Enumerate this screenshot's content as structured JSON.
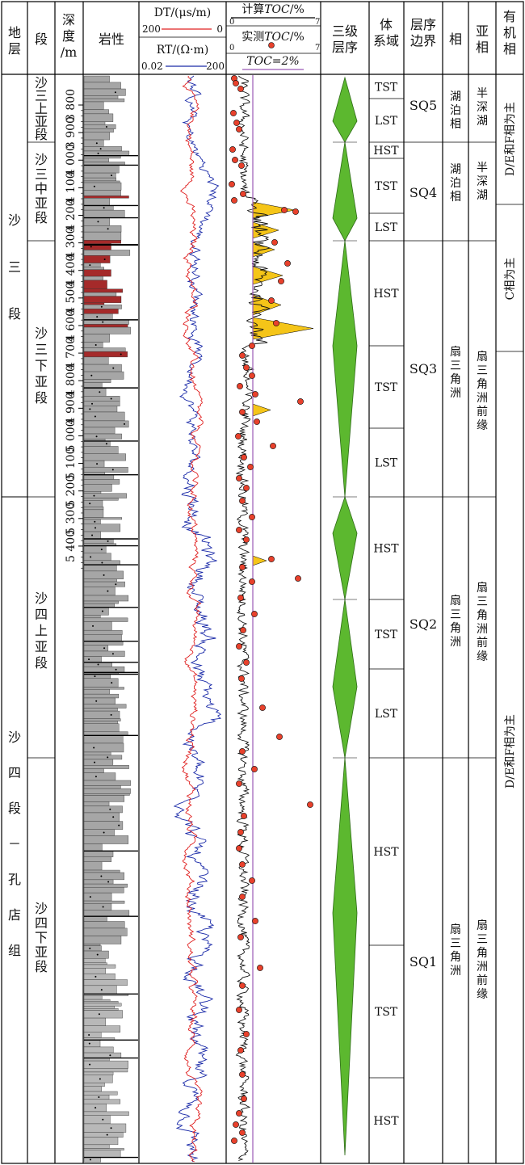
{
  "headers": {
    "strata": "地层",
    "member": "段",
    "depth": "深度/m",
    "lithology": "岩性",
    "dt": "DT/(μs/m)",
    "dt_left": "200",
    "dt_right": "0",
    "rt": "RT/(Ω·m)",
    "rt_left": "0.02",
    "rt_right": "200",
    "toc_calc": "计算TOC/%",
    "toc_calc_left": "0",
    "toc_calc_right": "7",
    "toc_meas": "实测TOC/%",
    "toc_meas_left": "0",
    "toc_meas_right": "7",
    "toc_ref": "TOC=2%",
    "third_order": "三级层序",
    "systems_tract": "体系域",
    "sequence_boundary": "层序边界",
    "facies": "相",
    "subfacies": "亚相",
    "organic_facies": "有机相"
  },
  "strata": [
    {
      "label": "沙三段"
    },
    {
      "label": "沙四段－孔店组"
    }
  ],
  "members": [
    {
      "label": "沙三上亚段"
    },
    {
      "label": "沙三中亚段"
    },
    {
      "label": "沙三下亚段"
    },
    {
      "label": "沙四上亚段"
    },
    {
      "label": "沙四下亚段"
    }
  ],
  "depth_ticks": [
    "3 800",
    "3 900",
    "4 000",
    "4 100",
    "4 200",
    "4 300",
    "4 400",
    "4 500",
    "4 600",
    "4 700",
    "4 800",
    "4 900",
    "5 000",
    "5 100",
    "5 200",
    "5 300",
    "5 400"
  ],
  "systems_tracts": [
    "TST",
    "LST",
    "HST",
    "TST",
    "LST",
    "HST",
    "TST",
    "LST",
    "HST",
    "TST",
    "LST",
    "HST",
    "TST",
    "HST"
  ],
  "sequences": [
    "SQ5",
    "SQ4",
    "SQ3",
    "SQ2",
    "SQ1"
  ],
  "facies": [
    "湖泊相",
    "湖泊相",
    "扇三角洲",
    "扇三角洲",
    "扇三角洲"
  ],
  "subfacies": [
    "半深湖",
    "半深湖",
    "扇三角洲前缘",
    "扇三角洲前缘",
    "扇三角洲前缘"
  ],
  "organic_facies": [
    "D/E和F相为主",
    "C相为主",
    "D/E和F相为主"
  ],
  "colors": {
    "dt_curve": "#e02020",
    "rt_curve": "#1a2aa8",
    "toc_curve": "#111111",
    "toc_fill": "#f5c518",
    "toc_point": "#e8412c",
    "toc_ref_line": "#9b59b6",
    "sequence_green": "#5cb82f",
    "lith_gray": "#a6a6a6",
    "lith_red": "#a52a2a"
  }
}
